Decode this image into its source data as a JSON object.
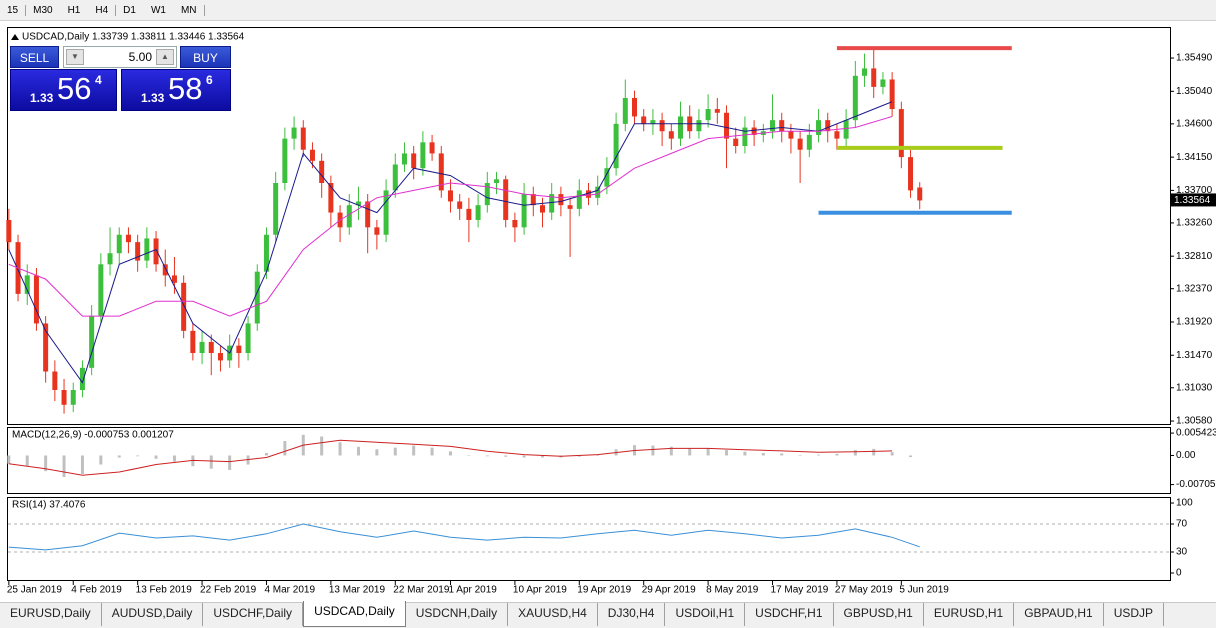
{
  "toolbar": [
    "15",
    "M30",
    "H1",
    "H4",
    "D1",
    "W1",
    "MN"
  ],
  "trade_panel": {
    "sell": "SELL",
    "buy": "BUY",
    "lot": "5.00",
    "bid": {
      "big": "1.33",
      "main": "56",
      "small": "4"
    },
    "ask": {
      "big": "1.33",
      "main": "58",
      "small": "6"
    }
  },
  "chart_data": [
    {
      "type": "candlestick",
      "title": "USDCAD,Daily",
      "subtitle": "1.33739 1.33811 1.33446 1.33564",
      "up_color": "#3cbf3c",
      "down_color": "#e8341f",
      "candles": [
        [
          1.333,
          1.3345,
          1.329,
          1.33
        ],
        [
          1.33,
          1.331,
          1.322,
          1.323
        ],
        [
          1.323,
          1.327,
          1.3215,
          1.3255
        ],
        [
          1.3255,
          1.3265,
          1.318,
          1.319
        ],
        [
          1.319,
          1.32,
          1.311,
          1.3125
        ],
        [
          1.3125,
          1.314,
          1.3085,
          1.31
        ],
        [
          1.31,
          1.3115,
          1.3068,
          1.308
        ],
        [
          1.308,
          1.311,
          1.307,
          1.31
        ],
        [
          1.31,
          1.314,
          1.309,
          1.313
        ],
        [
          1.313,
          1.3215,
          1.312,
          1.32
        ],
        [
          1.32,
          1.3285,
          1.319,
          1.327
        ],
        [
          1.327,
          1.332,
          1.3255,
          1.3285
        ],
        [
          1.3285,
          1.332,
          1.327,
          1.331
        ],
        [
          1.331,
          1.332,
          1.3285,
          1.33
        ],
        [
          1.33,
          1.331,
          1.326,
          1.3275
        ],
        [
          1.3275,
          1.332,
          1.3265,
          1.3305
        ],
        [
          1.3305,
          1.3315,
          1.326,
          1.327
        ],
        [
          1.327,
          1.329,
          1.324,
          1.3255
        ],
        [
          1.3255,
          1.328,
          1.323,
          1.3245
        ],
        [
          1.3245,
          1.3255,
          1.317,
          1.318
        ],
        [
          1.318,
          1.319,
          1.314,
          1.315
        ],
        [
          1.315,
          1.318,
          1.3135,
          1.3165
        ],
        [
          1.3165,
          1.3175,
          1.312,
          1.315
        ],
        [
          1.315,
          1.316,
          1.3125,
          1.314
        ],
        [
          1.314,
          1.3175,
          1.313,
          1.316
        ],
        [
          1.316,
          1.317,
          1.313,
          1.315
        ],
        [
          1.315,
          1.32,
          1.314,
          1.319
        ],
        [
          1.319,
          1.327,
          1.318,
          1.326
        ],
        [
          1.326,
          1.332,
          1.325,
          1.331
        ],
        [
          1.331,
          1.3395,
          1.33,
          1.338
        ],
        [
          1.338,
          1.3455,
          1.337,
          1.344
        ],
        [
          1.344,
          1.347,
          1.3425,
          1.3455
        ],
        [
          1.3455,
          1.3465,
          1.3415,
          1.3425
        ],
        [
          1.3425,
          1.3435,
          1.34,
          1.341
        ],
        [
          1.341,
          1.342,
          1.336,
          1.338
        ],
        [
          1.338,
          1.339,
          1.332,
          1.334
        ],
        [
          1.334,
          1.335,
          1.33,
          1.332
        ],
        [
          1.332,
          1.3365,
          1.331,
          1.335
        ],
        [
          1.335,
          1.3375,
          1.333,
          1.3355
        ],
        [
          1.3355,
          1.3365,
          1.3285,
          1.332
        ],
        [
          1.332,
          1.333,
          1.329,
          1.331
        ],
        [
          1.331,
          1.3385,
          1.33,
          1.337
        ],
        [
          1.337,
          1.342,
          1.336,
          1.3405
        ],
        [
          1.3405,
          1.3435,
          1.3395,
          1.342
        ],
        [
          1.342,
          1.343,
          1.3385,
          1.34
        ],
        [
          1.34,
          1.345,
          1.339,
          1.3435
        ],
        [
          1.3435,
          1.3445,
          1.341,
          1.342
        ],
        [
          1.342,
          1.343,
          1.336,
          1.337
        ],
        [
          1.337,
          1.3385,
          1.334,
          1.3355
        ],
        [
          1.3355,
          1.3365,
          1.333,
          1.3345
        ],
        [
          1.3345,
          1.336,
          1.33,
          1.333
        ],
        [
          1.333,
          1.3365,
          1.332,
          1.335
        ],
        [
          1.335,
          1.3395,
          1.334,
          1.338
        ],
        [
          1.338,
          1.3395,
          1.3365,
          1.3385
        ],
        [
          1.3385,
          1.339,
          1.332,
          1.333
        ],
        [
          1.333,
          1.334,
          1.33,
          1.332
        ],
        [
          1.332,
          1.338,
          1.331,
          1.3365
        ],
        [
          1.3365,
          1.3375,
          1.3335,
          1.335
        ],
        [
          1.335,
          1.336,
          1.332,
          1.334
        ],
        [
          1.334,
          1.338,
          1.333,
          1.3365
        ],
        [
          1.3365,
          1.3375,
          1.3335,
          1.335
        ],
        [
          1.335,
          1.336,
          1.328,
          1.3345
        ],
        [
          1.3345,
          1.3385,
          1.3335,
          1.337
        ],
        [
          1.337,
          1.338,
          1.335,
          1.336
        ],
        [
          1.336,
          1.339,
          1.335,
          1.3375
        ],
        [
          1.3375,
          1.3415,
          1.3365,
          1.34
        ],
        [
          1.34,
          1.3475,
          1.339,
          1.346
        ],
        [
          1.346,
          1.352,
          1.345,
          1.3495
        ],
        [
          1.3495,
          1.3505,
          1.346,
          1.347
        ],
        [
          1.347,
          1.348,
          1.345,
          1.346
        ],
        [
          1.346,
          1.348,
          1.3445,
          1.3465
        ],
        [
          1.3465,
          1.3475,
          1.343,
          1.345
        ],
        [
          1.345,
          1.346,
          1.3425,
          1.344
        ],
        [
          1.344,
          1.349,
          1.343,
          1.347
        ],
        [
          1.347,
          1.3485,
          1.344,
          1.345
        ],
        [
          1.345,
          1.348,
          1.344,
          1.3465
        ],
        [
          1.3465,
          1.35,
          1.3455,
          1.348
        ],
        [
          1.348,
          1.3495,
          1.346,
          1.3475
        ],
        [
          1.3475,
          1.3485,
          1.34,
          1.344
        ],
        [
          1.344,
          1.3455,
          1.342,
          1.343
        ],
        [
          1.343,
          1.347,
          1.342,
          1.3455
        ],
        [
          1.3455,
          1.3465,
          1.343,
          1.3445
        ],
        [
          1.3445,
          1.346,
          1.3435,
          1.345
        ],
        [
          1.345,
          1.35,
          1.344,
          1.3465
        ],
        [
          1.3465,
          1.3475,
          1.3435,
          1.345
        ],
        [
          1.345,
          1.346,
          1.342,
          1.344
        ],
        [
          1.344,
          1.345,
          1.338,
          1.3425
        ],
        [
          1.3425,
          1.346,
          1.3415,
          1.3445
        ],
        [
          1.3445,
          1.348,
          1.3435,
          1.3465
        ],
        [
          1.3465,
          1.3475,
          1.3435,
          1.345
        ],
        [
          1.345,
          1.346,
          1.3425,
          1.344
        ],
        [
          1.344,
          1.348,
          1.343,
          1.3465
        ],
        [
          1.3465,
          1.3545,
          1.3455,
          1.3525
        ],
        [
          1.3525,
          1.3555,
          1.351,
          1.3535
        ],
        [
          1.3535,
          1.356,
          1.3495,
          1.351
        ],
        [
          1.351,
          1.353,
          1.35,
          1.352
        ],
        [
          1.352,
          1.353,
          1.347,
          1.348
        ],
        [
          1.348,
          1.349,
          1.34,
          1.3415
        ],
        [
          1.3415,
          1.3425,
          1.336,
          1.337
        ],
        [
          1.33739,
          1.33811,
          1.33446,
          1.33564
        ]
      ],
      "series": [
        {
          "type": "line",
          "color": "#1a1a8c",
          "x": [
            0,
            4,
            8,
            12,
            16,
            20,
            24,
            28,
            32,
            36,
            40,
            44,
            48,
            52,
            56,
            60,
            64,
            68,
            72,
            76,
            80,
            84,
            88,
            92,
            96
          ],
          "values": [
            1.329,
            1.318,
            1.311,
            1.327,
            1.329,
            1.319,
            1.315,
            1.326,
            1.342,
            1.336,
            1.334,
            1.34,
            1.339,
            1.336,
            1.335,
            1.3355,
            1.337,
            1.346,
            1.346,
            1.346,
            1.345,
            1.3455,
            1.345,
            1.347,
            1.349
          ]
        },
        {
          "type": "line",
          "color": "#e030d0",
          "x": [
            0,
            4,
            8,
            12,
            16,
            20,
            24,
            28,
            32,
            36,
            40,
            44,
            48,
            52,
            56,
            60,
            64,
            68,
            72,
            76,
            80,
            84,
            88,
            92,
            96
          ],
          "values": [
            1.327,
            1.325,
            1.32,
            1.32,
            1.322,
            1.322,
            1.32,
            1.322,
            1.329,
            1.333,
            1.336,
            1.337,
            1.338,
            1.3375,
            1.3365,
            1.336,
            1.3365,
            1.34,
            1.342,
            1.344,
            1.3445,
            1.345,
            1.345,
            1.3455,
            1.347
          ]
        }
      ],
      "hlines": [
        {
          "value": 1.35625,
          "color": "#e84a4a",
          "x": [
            90,
            109
          ]
        },
        {
          "value": 1.34275,
          "color": "#a8cc1a",
          "x": [
            90,
            108
          ]
        },
        {
          "value": 1.33397,
          "color": "#3a8fe0",
          "x": [
            88,
            109
          ]
        }
      ],
      "last_price": {
        "value": 1.33564,
        "label": "1.33564"
      },
      "xlim": [
        -0.2,
        126.2
      ],
      "xticks": [
        {
          "value": 0,
          "label": "25 Jan 2019"
        },
        {
          "value": 7,
          "label": "4 Feb 2019"
        },
        {
          "value": 14,
          "label": "13 Feb 2019"
        },
        {
          "value": 21,
          "label": "22 Feb 2019"
        },
        {
          "value": 28,
          "label": "4 Mar 2019"
        },
        {
          "value": 35,
          "label": "13 Mar 2019"
        },
        {
          "value": 42,
          "label": "22 Mar 2019"
        },
        {
          "value": 48,
          "label": "1 Apr 2019"
        },
        {
          "value": 55,
          "label": "10 Apr 2019"
        },
        {
          "value": 62,
          "label": "19 Apr 2019"
        },
        {
          "value": 69,
          "label": "29 Apr 2019"
        },
        {
          "value": 76,
          "label": "8 May 2019"
        },
        {
          "value": 83,
          "label": "17 May 2019"
        },
        {
          "value": 90,
          "label": "27 May 2019"
        },
        {
          "value": 97,
          "label": "5 Jun 2019"
        }
      ],
      "ylim": [
        1.3054,
        1.3591
      ],
      "yticks": [
        {
          "value": 1.3549,
          "label": "1.35490"
        },
        {
          "value": 1.3504,
          "label": "1.35040"
        },
        {
          "value": 1.346,
          "label": "1.34600"
        },
        {
          "value": 1.3415,
          "label": "1.34150"
        },
        {
          "value": 1.337,
          "label": "1.33700"
        },
        {
          "value": 1.3326,
          "label": "1.33260"
        },
        {
          "value": 1.3281,
          "label": "1.32810"
        },
        {
          "value": 1.3237,
          "label": "1.32370"
        },
        {
          "value": 1.3192,
          "label": "1.31920"
        },
        {
          "value": 1.3147,
          "label": "1.31470"
        },
        {
          "value": 1.3103,
          "label": "1.31030"
        },
        {
          "value": 1.3058,
          "label": "1.30580"
        }
      ]
    },
    {
      "type": "macd",
      "title": "MACD(12,26,9) -0.000753 0.001207",
      "series": [
        {
          "type": "bar",
          "color": "#c0c0c0",
          "x": [
            0,
            2,
            4,
            6,
            8,
            10,
            12,
            14,
            16,
            18,
            20,
            22,
            24,
            26,
            28,
            30,
            32,
            34,
            36,
            38,
            40,
            42,
            44,
            46,
            48,
            50,
            52,
            54,
            56,
            58,
            60,
            62,
            64,
            66,
            68,
            70,
            72,
            74,
            76,
            78,
            80,
            82,
            84,
            86,
            88,
            90,
            92,
            94,
            96,
            98
          ],
          "values": [
            -0.002,
            -0.0025,
            -0.0038,
            -0.0052,
            -0.0045,
            -0.0022,
            -0.0005,
            -0.0002,
            -0.0008,
            -0.0015,
            -0.0026,
            -0.0032,
            -0.0035,
            -0.0022,
            0.0006,
            0.0035,
            0.005,
            0.0046,
            0.0032,
            0.0021,
            0.0015,
            0.0019,
            0.0024,
            0.0019,
            0.001,
            0.0001,
            -0.0002,
            -0.0003,
            -0.0005,
            -0.0005,
            -0.0005,
            -0.0003,
            -0.0001,
            0.0015,
            0.0025,
            0.0024,
            0.0021,
            0.0018,
            0.0017,
            0.0013,
            0.0009,
            0.0006,
            0.0005,
            0.0001,
            0.0002,
            0.0004,
            0.0013,
            0.0016,
            0.0008,
            -0.0004
          ]
        },
        {
          "type": "line",
          "color": "#cc2020",
          "x": [
            0,
            4,
            8,
            12,
            16,
            20,
            24,
            28,
            32,
            36,
            40,
            44,
            48,
            52,
            56,
            60,
            64,
            68,
            72,
            76,
            80,
            84,
            88,
            92,
            96
          ],
          "values": [
            -0.002,
            -0.0032,
            -0.0048,
            -0.004,
            -0.0022,
            -0.0012,
            -0.0015,
            -0.0005,
            0.0025,
            0.0037,
            0.0032,
            0.0027,
            0.0022,
            0.001,
            0.0002,
            -0.0002,
            0.0002,
            0.0012,
            0.0017,
            0.0017,
            0.0014,
            0.0011,
            0.0008,
            0.0009,
            0.0011
          ]
        }
      ],
      "ylim": [
        -0.0091,
        0.0069
      ],
      "yticks": [
        0.005423,
        {
          "value": 0,
          "label": "0.00"
        },
        -0.007057
      ]
    },
    {
      "type": "rsi",
      "title": "RSI(14) 37.4076",
      "series": [
        {
          "type": "line",
          "color": "#3a8fd6",
          "x": [
            0,
            4,
            8,
            12,
            16,
            20,
            24,
            28,
            32,
            36,
            40,
            44,
            48,
            52,
            56,
            60,
            64,
            68,
            72,
            76,
            80,
            84,
            88,
            92,
            96,
            99
          ],
          "values": [
            37,
            33,
            39,
            57,
            50,
            53,
            47,
            56,
            70,
            59,
            51,
            60,
            51,
            47,
            51,
            50,
            56,
            61,
            54,
            61,
            56,
            50,
            54,
            63,
            51,
            37.4
          ]
        }
      ],
      "levels": [
        70,
        30
      ],
      "ylim": [
        -10,
        108.6
      ],
      "yticks": [
        100,
        70,
        30,
        0
      ]
    }
  ],
  "tabs": [
    "EURUSD,Daily",
    "AUDUSD,Daily",
    "USDCHF,Daily",
    "USDCAD,Daily",
    "USDCNH,Daily",
    "XAUUSD,H4",
    "DJ30,H4",
    "USDOil,H1",
    "USDCHF,H1",
    "GBPUSD,H1",
    "EURUSD,H1",
    "GBPAUD,H1",
    "USDJP"
  ],
  "active_tab": 3
}
